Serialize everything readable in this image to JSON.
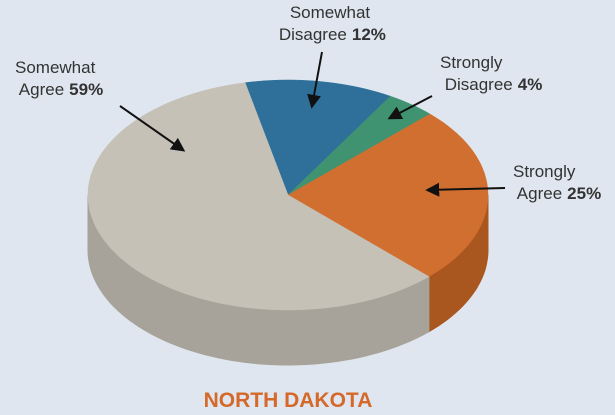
{
  "chart_data": {
    "type": "pie3d",
    "title": "NORTH DAKOTA",
    "categories": [
      "Somewhat Disagree",
      "Strongly Disagree",
      "Strongly Agree",
      "Somewhat Agree"
    ],
    "values": [
      12,
      4,
      25,
      59
    ],
    "value_labels": [
      "12%",
      "4%",
      "25%",
      "59%"
    ],
    "colors": [
      "#2e7099",
      "#3f9370",
      "#d06f30",
      "#c5c1b6"
    ],
    "side_colors": [
      "#245a7a",
      "#317558",
      "#a9561f",
      "#a7a39a"
    ]
  }
}
